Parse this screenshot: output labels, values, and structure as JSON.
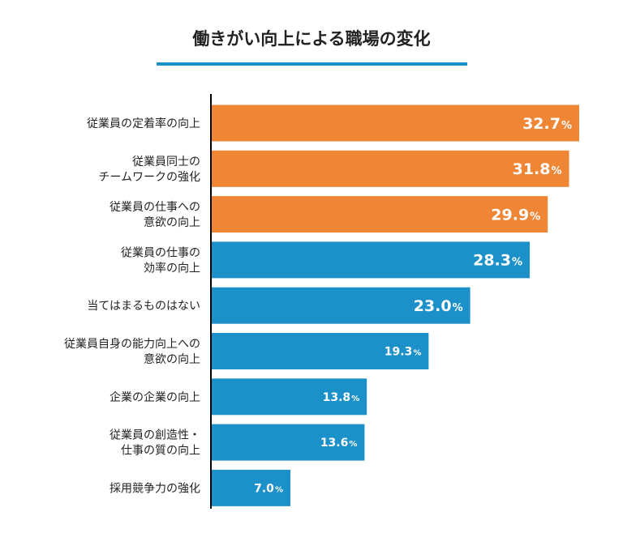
{
  "chart_data": {
    "type": "bar",
    "orientation": "horizontal",
    "title": "働きがい向上による職場の変化",
    "categories": [
      [
        "従業員の定着率の向上"
      ],
      [
        "従業員同士の",
        "チームワークの強化"
      ],
      [
        "従業員の仕事への",
        "意欲の向上"
      ],
      [
        "従業員の仕事の",
        "効率の向上"
      ],
      [
        "当てはまるものはない"
      ],
      [
        "従業員自身の能力向上への",
        "意欲の向上"
      ],
      [
        "企業の企業の向上"
      ],
      [
        "従業員の創造性・",
        "仕事の質の向上"
      ],
      [
        "採用競争力の強化"
      ]
    ],
    "values": [
      32.7,
      31.8,
      29.9,
      28.3,
      23.0,
      19.3,
      13.8,
      13.6,
      7.0
    ],
    "value_labels": [
      "32.7",
      "31.8",
      "29.9",
      "28.3",
      "23.0",
      "19.3",
      "13.8",
      "13.6",
      "7.0"
    ],
    "unit": "%",
    "xlim": [
      0,
      32.7
    ],
    "grid": false,
    "colors": {
      "highlight": "#ef8636",
      "default": "#1b90c9",
      "axis": "#000000",
      "title_underline": "#1b90c9"
    },
    "highlight_top_n": 3
  }
}
